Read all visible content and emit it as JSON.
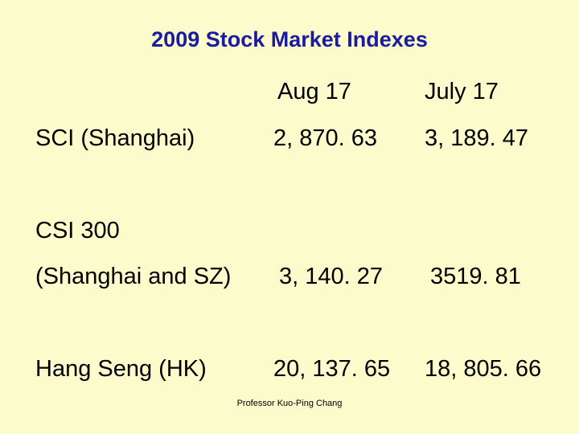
{
  "title": "2009  Stock Market Indexes",
  "table": {
    "header": [
      "Aug 17",
      "July 17"
    ],
    "rows": [
      {
        "label": [
          "SCI (Shanghai)"
        ],
        "values": [
          "2, 870. 63",
          "3, 189. 47"
        ]
      },
      {
        "label": [
          "CSI 300",
          "(Shanghai and SZ)"
        ],
        "values": [
          "3, 140. 27",
          "3519. 81"
        ]
      },
      {
        "label": [
          "Hang Seng (HK)"
        ],
        "values": [
          "20, 137. 65",
          "18, 805. 66"
        ]
      }
    ]
  },
  "footer": "Professor Kuo-Ping Chang"
}
